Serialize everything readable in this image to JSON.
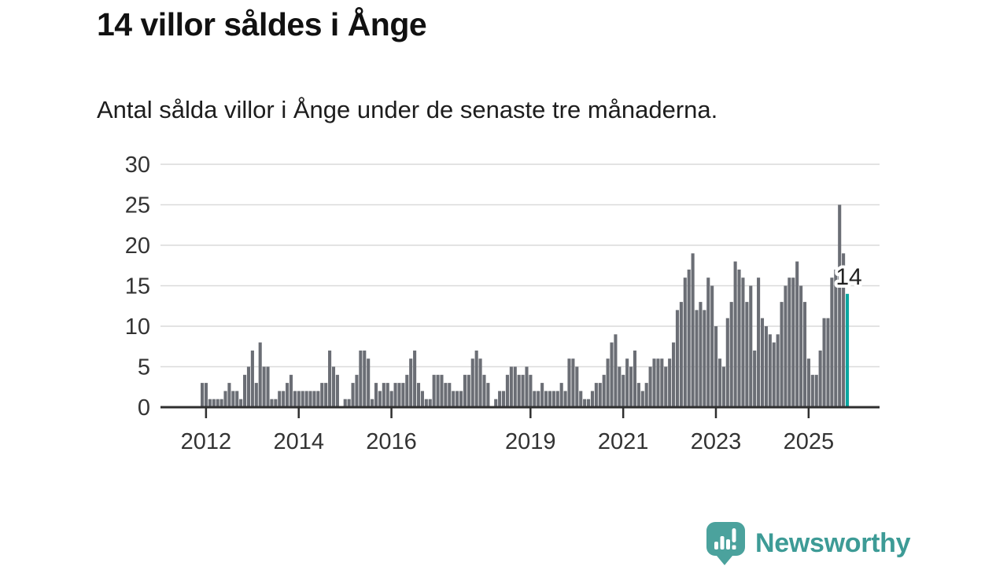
{
  "header": {
    "title": "14 villor såldes i Ånge",
    "subtitle": "Antal sålda villor i Ånge under de senaste tre månaderna."
  },
  "chart_data": {
    "type": "bar",
    "title": "14 villor såldes i Ånge",
    "subtitle": "Antal sålda villor i Ånge under de senaste tre månaderna.",
    "grid": true,
    "legend": "none",
    "ylim": [
      0,
      30
    ],
    "y_ticks": [
      0,
      5,
      10,
      15,
      20,
      25,
      30
    ],
    "x_ticks": [
      {
        "label": "2012",
        "index": 0
      },
      {
        "label": "2014",
        "index": 24
      },
      {
        "label": "2016",
        "index": 48
      },
      {
        "label": "2019",
        "index": 84
      },
      {
        "label": "2021",
        "index": 108
      },
      {
        "label": "2023",
        "index": 132
      },
      {
        "label": "2025",
        "index": 156
      }
    ],
    "values": [
      3,
      3,
      1,
      1,
      1,
      1,
      2,
      3,
      2,
      2,
      1,
      4,
      5,
      7,
      3,
      8,
      5,
      5,
      1,
      1,
      2,
      2,
      3,
      4,
      2,
      2,
      2,
      2,
      2,
      2,
      2,
      3,
      3,
      7,
      5,
      4,
      0,
      1,
      1,
      3,
      4,
      7,
      7,
      6,
      1,
      3,
      2,
      3,
      3,
      2,
      3,
      3,
      3,
      4,
      6,
      7,
      3,
      2,
      1,
      1,
      4,
      4,
      4,
      3,
      3,
      2,
      2,
      2,
      4,
      4,
      6,
      7,
      6,
      4,
      3,
      0,
      1,
      2,
      2,
      4,
      5,
      5,
      4,
      4,
      5,
      4,
      2,
      2,
      3,
      2,
      2,
      2,
      2,
      3,
      2,
      6,
      6,
      5,
      2,
      1,
      1,
      2,
      3,
      3,
      4,
      6,
      8,
      9,
      5,
      4,
      6,
      5,
      7,
      3,
      2,
      3,
      5,
      6,
      6,
      6,
      5,
      6,
      8,
      12,
      13,
      16,
      17,
      19,
      12,
      13,
      12,
      16,
      15,
      10,
      6,
      5,
      11,
      13,
      18,
      17,
      16,
      13,
      15,
      7,
      16,
      11,
      10,
      9,
      8,
      9,
      13,
      15,
      16,
      16,
      18,
      15,
      13,
      6,
      4,
      4,
      7,
      11,
      11,
      16,
      17,
      25,
      19,
      14
    ],
    "highlight_last_bar": true,
    "annotation": {
      "text": "14",
      "value": 14
    },
    "colors": {
      "bar": "#6B6E75",
      "highlight": "#0BA6A0",
      "axis": "#2F2F2F",
      "grid": "#DADADA",
      "labels": "#333333"
    }
  },
  "footer": {
    "brand": "Newsworthy",
    "logo_icon": "newsworthy-speech-bubble-bar-chart-icon",
    "brand_color": "#3D9B96",
    "logo_color": "#4BA29D"
  }
}
